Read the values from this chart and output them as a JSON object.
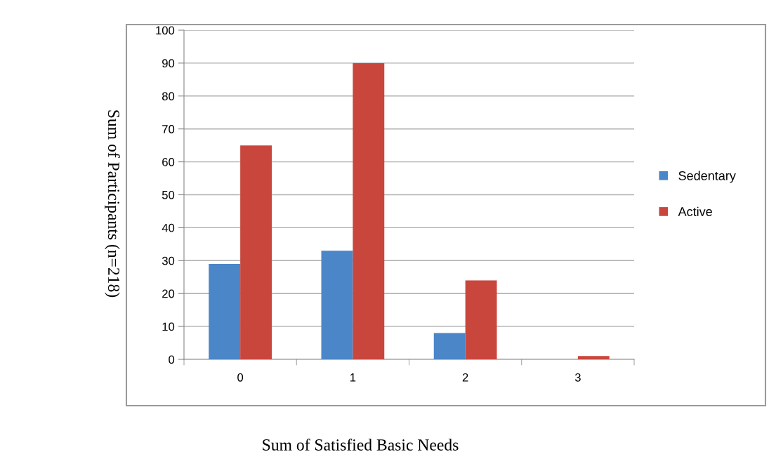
{
  "chart_data": {
    "type": "bar",
    "xlabel": "Sum of Satisfied Basic Needs",
    "ylabel": "Sum of Participants (n=218)",
    "categories": [
      "0",
      "1",
      "2",
      "3"
    ],
    "series": [
      {
        "name": "Sedentary",
        "color": "#4a86c8",
        "values": [
          29,
          33,
          8,
          0
        ]
      },
      {
        "name": "Active",
        "color": "#c9463d",
        "values": [
          65,
          90,
          24,
          1
        ]
      }
    ],
    "ylim": [
      0,
      100
    ],
    "yticks": [
      0,
      10,
      20,
      30,
      40,
      50,
      60,
      70,
      80,
      90,
      100
    ],
    "grid": "y",
    "legend": "right"
  }
}
